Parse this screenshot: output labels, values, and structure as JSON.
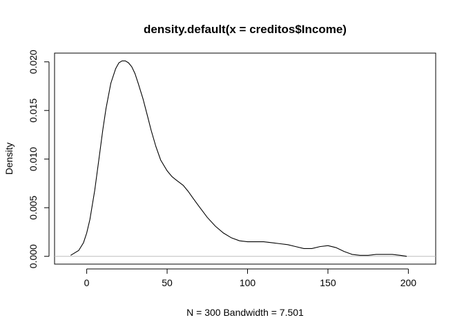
{
  "chart_data": {
    "type": "line",
    "title": "density.default(x = creditos$Income)",
    "xlabel": "N = 300   Bandwidth = 7.501",
    "ylabel": "Density",
    "xlim": [
      -20,
      217
    ],
    "ylim": [
      -0.0008,
      0.0209
    ],
    "xticks": [
      0,
      50,
      100,
      150,
      200
    ],
    "xtick_labels": [
      "0",
      "50",
      "100",
      "150",
      "200"
    ],
    "yticks": [
      0.0,
      0.005,
      0.01,
      0.015,
      0.02
    ],
    "ytick_labels": [
      "0.000",
      "0.005",
      "0.010",
      "0.015",
      "0.020"
    ],
    "grid": false,
    "legend": "none",
    "baseline_color": "#bebebe",
    "line_color": "#000000",
    "series": [
      {
        "x": [
          -10,
          -5,
          -2,
          0,
          2,
          5,
          8,
          10,
          12,
          15,
          18,
          20,
          22,
          24,
          26,
          28,
          30,
          32,
          35,
          38,
          40,
          43,
          46,
          50,
          53,
          56,
          60,
          63,
          66,
          70,
          75,
          80,
          85,
          90,
          95,
          100,
          105,
          110,
          115,
          120,
          125,
          130,
          135,
          140,
          145,
          150,
          155,
          160,
          165,
          170,
          175,
          180,
          185,
          190,
          195,
          199
        ],
        "y": [
          0.0001,
          0.0006,
          0.0014,
          0.0024,
          0.0038,
          0.0068,
          0.0105,
          0.013,
          0.0152,
          0.0178,
          0.0193,
          0.0199,
          0.0201,
          0.0201,
          0.0199,
          0.0195,
          0.0188,
          0.0178,
          0.0162,
          0.0143,
          0.013,
          0.0113,
          0.0099,
          0.0088,
          0.0082,
          0.0078,
          0.0073,
          0.0067,
          0.006,
          0.0051,
          0.004,
          0.0031,
          0.0024,
          0.0019,
          0.0016,
          0.0015,
          0.0015,
          0.0015,
          0.0014,
          0.0013,
          0.0012,
          0.001,
          0.0008,
          0.0008,
          0.001,
          0.0011,
          0.0009,
          0.0005,
          0.0002,
          0.0001,
          0.0001,
          0.0002,
          0.0002,
          0.0002,
          0.0001,
          0.0
        ]
      }
    ]
  }
}
